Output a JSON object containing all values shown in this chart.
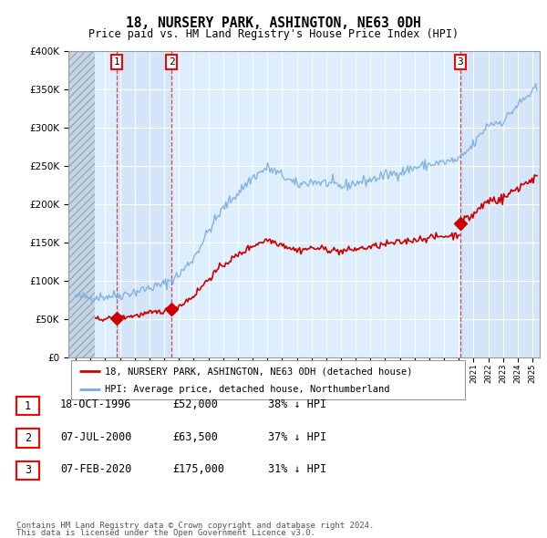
{
  "title": "18, NURSERY PARK, ASHINGTON, NE63 0DH",
  "subtitle": "Price paid vs. HM Land Registry's House Price Index (HPI)",
  "transactions": [
    {
      "num": 1,
      "date_str": "18-OCT-1996",
      "date_x": 1996.79,
      "price": 52000,
      "hpi_pct": "38% ↓ HPI"
    },
    {
      "num": 2,
      "date_str": "07-JUL-2000",
      "date_x": 2000.51,
      "price": 63500,
      "hpi_pct": "37% ↓ HPI"
    },
    {
      "num": 3,
      "date_str": "07-FEB-2020",
      "date_x": 2020.1,
      "price": 175000,
      "hpi_pct": "31% ↓ HPI"
    }
  ],
  "legend_line1": "18, NURSERY PARK, ASHINGTON, NE63 0DH (detached house)",
  "legend_line2": "HPI: Average price, detached house, Northumberland",
  "footer1": "Contains HM Land Registry data © Crown copyright and database right 2024.",
  "footer2": "This data is licensed under the Open Government Licence v3.0.",
  "xlim": [
    1993.5,
    2025.5
  ],
  "ylim": [
    0,
    400000
  ],
  "hatch_end_x": 1995.3,
  "red_line_color": "#cc0000",
  "blue_line_color": "#7aaddb",
  "bg_color": "#ddeeff",
  "shade_color": "#ccddf0",
  "hatch_bg": "#c5d5e5"
}
